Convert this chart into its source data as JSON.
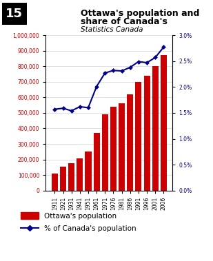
{
  "title_line1": "Ottawa's population and",
  "title_line2": "share of Canada's",
  "subtitle": "Statistics Canada",
  "years": [
    "1911",
    "1921",
    "1931",
    "1941",
    "1951",
    "1961",
    "1971",
    "1976",
    "1981",
    "1986",
    "1991",
    "1996",
    "2001",
    "2006"
  ],
  "population": [
    110000,
    154000,
    175000,
    205000,
    250000,
    370000,
    490000,
    540000,
    560000,
    620000,
    700000,
    740000,
    800000,
    870000
  ],
  "pct_canada": [
    1.57,
    1.59,
    1.54,
    1.62,
    1.6,
    2.01,
    2.27,
    2.32,
    2.31,
    2.38,
    2.49,
    2.47,
    2.57,
    2.77
  ],
  "bar_color": "#cc0000",
  "line_color": "#00008B",
  "left_axis_color": "#cc0000",
  "right_axis_color": "#00008B",
  "ylim_left": [
    0,
    1000000
  ],
  "ylim_right": [
    0.0,
    3.0
  ],
  "yticks_left": [
    0,
    100000,
    200000,
    300000,
    400000,
    500000,
    600000,
    700000,
    800000,
    900000,
    1000000
  ],
  "ytick_labels_left": [
    "0",
    "100,000",
    "200,000",
    "300,000",
    "400,000",
    "500,000",
    "600,000",
    "700,000",
    "800,000",
    "900,000",
    "1,000,000"
  ],
  "yticks_right": [
    0.0,
    0.5,
    1.0,
    1.5,
    2.0,
    2.5,
    3.0
  ],
  "ytick_labels_right": [
    "0.0%",
    "0.5%",
    "1.0%",
    "1.5%",
    "2.0%",
    "2.5%",
    "3.0%"
  ],
  "legend_bar_label": "Ottawa's population",
  "legend_line_label": "% of Canada's population",
  "number_box_text": "15",
  "background_color": "#ffffff"
}
